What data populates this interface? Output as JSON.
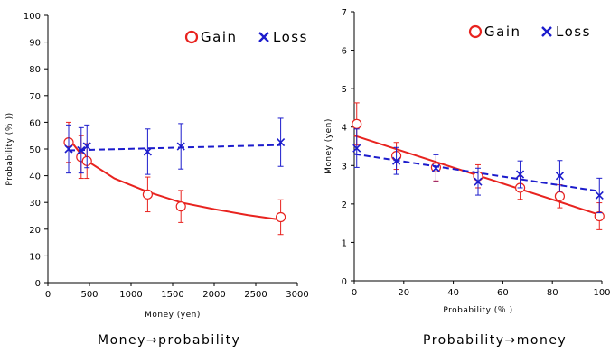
{
  "chart_data": [
    {
      "type": "scatter",
      "caption": "Money→probability",
      "xlabel": "Money (yen)",
      "ylabel": "Probability (％ ))",
      "xlim": [
        0,
        3000
      ],
      "ylim": [
        0,
        100
      ],
      "xticks": [
        "0",
        "500",
        "1000",
        "1500",
        "2000",
        "2500",
        "3000"
      ],
      "yticks": [
        "0",
        "10",
        "20",
        "30",
        "40",
        "50",
        "60",
        "70",
        "80",
        "90",
        "100"
      ],
      "legend": {
        "position": "top-right",
        "gain": "Gain",
        "loss": "Loss"
      },
      "series": [
        {
          "name": "Gain",
          "color": "#e8231f",
          "marker": "circle",
          "line": "solid",
          "points": [
            {
              "x": 250,
              "y": 52.5,
              "err": 7.5
            },
            {
              "x": 400,
              "y": 47,
              "err": 8
            },
            {
              "x": 470,
              "y": 45.5,
              "err": 6.5
            },
            {
              "x": 1200,
              "y": 33,
              "err": 6.5
            },
            {
              "x": 1600,
              "y": 28.5,
              "err": 6
            },
            {
              "x": 2800,
              "y": 24.5,
              "err": 6.5
            }
          ],
          "fit": [
            [
              250,
              54
            ],
            [
              400,
              48
            ],
            [
              500,
              45
            ],
            [
              800,
              39
            ],
            [
              1200,
              34
            ],
            [
              1600,
              30
            ],
            [
              2000,
              27.5
            ],
            [
              2400,
              25.3
            ],
            [
              2800,
              23.5
            ]
          ]
        },
        {
          "name": "Loss",
          "color": "#1c1ccc",
          "marker": "x",
          "line": "dashed",
          "points": [
            {
              "x": 250,
              "y": 50,
              "err": 9
            },
            {
              "x": 400,
              "y": 49.5,
              "err": 8.5
            },
            {
              "x": 470,
              "y": 51,
              "err": 8
            },
            {
              "x": 1200,
              "y": 49,
              "err": 8.5
            },
            {
              "x": 1600,
              "y": 51,
              "err": 8.5
            },
            {
              "x": 2800,
              "y": 52.5,
              "err": 9
            }
          ],
          "fit": [
            [
              250,
              49.5
            ],
            [
              2800,
              51.5
            ]
          ]
        }
      ]
    },
    {
      "type": "scatter",
      "caption": "Probability→money",
      "xlabel": "Probability (％ )",
      "ylabel": "Money (yen)",
      "xlim": [
        0,
        100
      ],
      "ylim": [
        0,
        7
      ],
      "xticks": [
        "0",
        "20",
        "40",
        "60",
        "80",
        "100"
      ],
      "yticks": [
        "0",
        "1",
        "2",
        "3",
        "4",
        "5",
        "6",
        "7"
      ],
      "legend": {
        "position": "top-right",
        "gain": "Gain",
        "loss": "Loss"
      },
      "series": [
        {
          "name": "Gain",
          "color": "#e8231f",
          "marker": "circle",
          "line": "solid",
          "points": [
            {
              "x": 1,
              "y": 4.08,
              "err": 0.55
            },
            {
              "x": 17,
              "y": 3.25,
              "err": 0.35
            },
            {
              "x": 33,
              "y": 2.95,
              "err": 0.35
            },
            {
              "x": 50,
              "y": 2.72,
              "err": 0.3
            },
            {
              "x": 67,
              "y": 2.42,
              "err": 0.3
            },
            {
              "x": 83,
              "y": 2.2,
              "err": 0.3
            },
            {
              "x": 99,
              "y": 1.68,
              "err": 0.35
            }
          ],
          "fit": [
            [
              0,
              3.78
            ],
            [
              99,
              1.72
            ]
          ]
        },
        {
          "name": "Loss",
          "color": "#1c1ccc",
          "marker": "x",
          "line": "dashed",
          "points": [
            {
              "x": 1,
              "y": 3.45,
              "err": 0.5
            },
            {
              "x": 17,
              "y": 3.12,
              "err": 0.35
            },
            {
              "x": 33,
              "y": 2.93,
              "err": 0.35
            },
            {
              "x": 50,
              "y": 2.58,
              "err": 0.35
            },
            {
              "x": 67,
              "y": 2.77,
              "err": 0.35
            },
            {
              "x": 83,
              "y": 2.73,
              "err": 0.4
            },
            {
              "x": 99,
              "y": 2.22,
              "err": 0.45
            }
          ],
          "fit": [
            [
              0,
              3.3
            ],
            [
              99,
              2.33
            ]
          ]
        }
      ]
    }
  ]
}
